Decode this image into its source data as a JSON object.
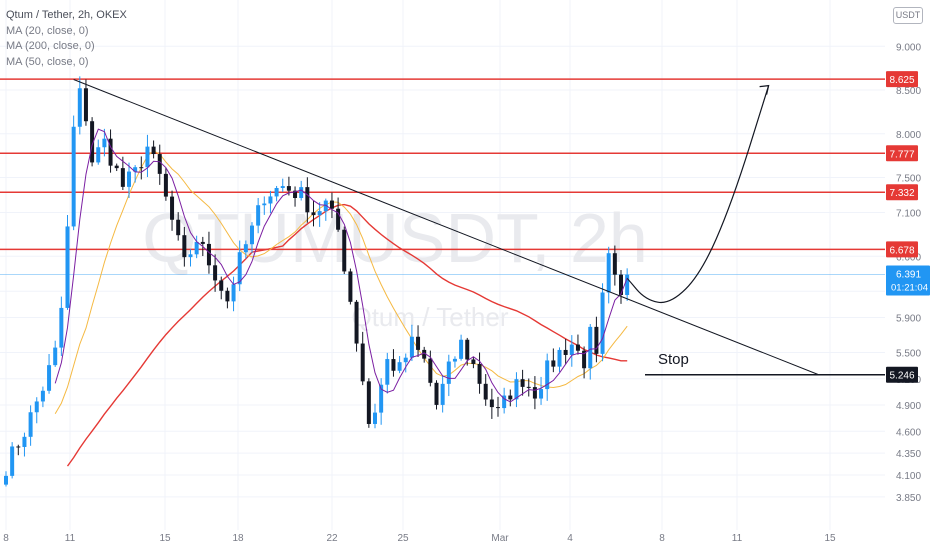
{
  "legend": {
    "symbol": "Qtum / Tether, 2h, OKEX",
    "ma20": "MA (20, close, 0)",
    "ma200": "MA (200, close, 0)",
    "ma50": "MA (50, close, 0)"
  },
  "currency_badge": "USDT",
  "watermark": {
    "symbol": "QTUMUSDT, 2h",
    "name": "Qtum / Tether"
  },
  "annotation_stop": "Stop",
  "colors": {
    "up": "#2196f3",
    "down": "#131722",
    "ma20": "#7b1fa2",
    "ma200": "#e53935",
    "ma50": "#f5b942",
    "resistance": "#e53935",
    "price_line": "#2196f3",
    "badge_red": "#e53935"
  },
  "chart_data": {
    "type": "candlestick",
    "ylim": [
      3.75,
      9.25
    ],
    "x_tick_labels": [
      "8",
      "11",
      "15",
      "18",
      "22",
      "25",
      "Mar",
      "4",
      "8",
      "11",
      "15"
    ],
    "y_tick_labels": [
      "3.850",
      "4.100",
      "4.350",
      "4.600",
      "4.900",
      "5.200",
      "5.500",
      "5.900",
      "6.200",
      "6.600",
      "7.100",
      "7.500",
      "8.000",
      "8.500",
      "9.000"
    ],
    "horizontal_levels": [
      {
        "value": 8.625,
        "label": "8.625",
        "style": "resistance"
      },
      {
        "value": 7.777,
        "label": "7.777",
        "style": "resistance"
      },
      {
        "value": 7.332,
        "label": "7.332",
        "style": "resistance"
      },
      {
        "value": 6.678,
        "label": "6.678",
        "style": "resistance"
      },
      {
        "value": 5.246,
        "label": "5.246",
        "style": "stop"
      }
    ],
    "last_price": {
      "value": 6.391,
      "label": "6.391",
      "countdown": "01:21:04"
    },
    "trendline": {
      "from": {
        "bar": 11,
        "price": 8.62
      },
      "to": {
        "bar": 132,
        "price": 5.25
      }
    },
    "price_path": {
      "bars": 142,
      "anchors": [
        [
          0,
          4.2
        ],
        [
          3,
          4.6
        ],
        [
          6,
          5.1
        ],
        [
          8,
          5.5
        ],
        [
          9,
          6.0
        ],
        [
          10,
          6.9
        ],
        [
          11,
          8.05
        ],
        [
          12,
          8.45
        ],
        [
          13,
          8.2
        ],
        [
          14,
          7.7
        ],
        [
          16,
          7.9
        ],
        [
          19,
          7.4
        ],
        [
          21,
          7.55
        ],
        [
          23,
          7.85
        ],
        [
          25,
          7.5
        ],
        [
          27,
          7.0
        ],
        [
          29,
          6.5
        ],
        [
          31,
          6.8
        ],
        [
          34,
          6.4
        ],
        [
          36,
          6.1
        ],
        [
          38,
          6.55
        ],
        [
          40,
          6.9
        ],
        [
          42,
          7.3
        ],
        [
          45,
          7.4
        ],
        [
          48,
          7.3
        ],
        [
          50,
          7.1
        ],
        [
          52,
          7.2
        ],
        [
          54,
          6.9
        ],
        [
          56,
          6.1
        ],
        [
          58,
          5.2
        ],
        [
          59,
          4.7
        ],
        [
          60,
          4.85
        ],
        [
          62,
          5.4
        ],
        [
          64,
          5.3
        ],
        [
          66,
          5.6
        ],
        [
          68,
          5.4
        ],
        [
          70,
          4.9
        ],
        [
          72,
          5.3
        ],
        [
          74,
          5.6
        ],
        [
          76,
          5.35
        ],
        [
          78,
          5.0
        ],
        [
          80,
          4.8
        ],
        [
          82,
          5.05
        ],
        [
          84,
          5.2
        ],
        [
          86,
          5.05
        ],
        [
          88,
          5.3
        ],
        [
          90,
          5.5
        ],
        [
          92,
          5.6
        ],
        [
          94,
          5.4
        ],
        [
          95,
          5.7
        ],
        [
          96,
          5.4
        ],
        [
          97,
          6.1
        ],
        [
          98,
          6.55
        ],
        [
          99,
          6.3
        ],
        [
          100,
          6.1
        ],
        [
          101,
          6.39
        ]
      ]
    },
    "projection_path": [
      [
        101,
        6.35
      ],
      [
        104,
        6.1
      ],
      [
        108,
        6.05
      ],
      [
        113,
        6.4
      ],
      [
        118,
        7.2
      ],
      [
        124,
        8.55
      ]
    ]
  }
}
